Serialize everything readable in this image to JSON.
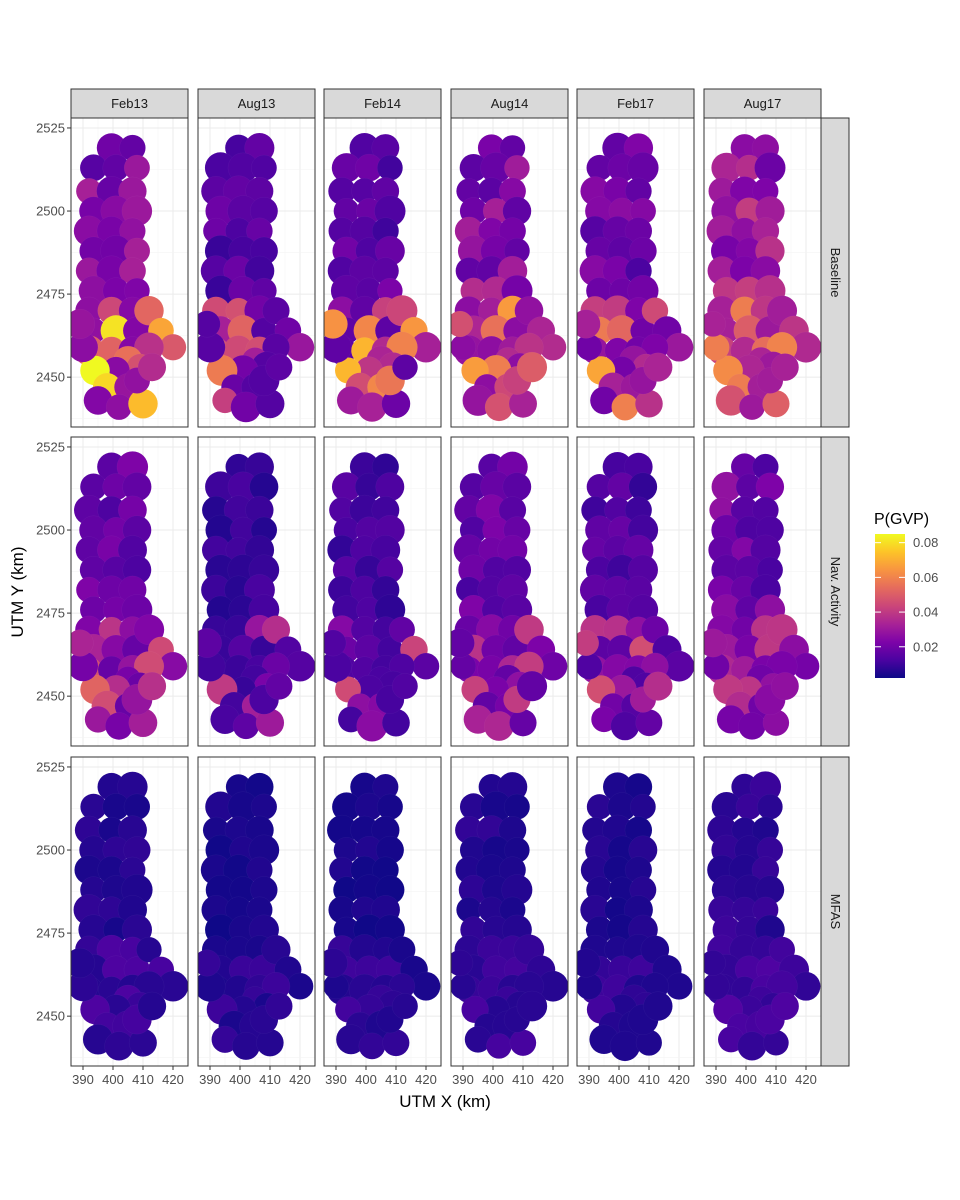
{
  "chart_data": {
    "type": "heatmap",
    "description_kind": "faceted choropleth map grid (Voronoi-like cells)",
    "columns": [
      "Feb13",
      "Aug13",
      "Feb14",
      "Aug14",
      "Feb17",
      "Aug17"
    ],
    "rows": [
      "Baseline",
      "Nav. Activity",
      "MFAS"
    ],
    "xlabel": "UTM X (km)",
    "ylabel": "UTM Y (km)",
    "x_ticks": [
      "390",
      "400",
      "410",
      "420"
    ],
    "x_tick_values": [
      390,
      400,
      410,
      420
    ],
    "y_ticks": [
      "2525",
      "2500",
      "2475",
      "2450"
    ],
    "y_tick_values": [
      2525,
      2500,
      2475,
      2450
    ],
    "xlim": [
      386,
      425
    ],
    "ylim": [
      2435,
      2528
    ],
    "grid": true,
    "legend": {
      "title": "P(GVP)",
      "position": "right",
      "range": [
        0.002,
        0.085
      ],
      "ticks": [
        "0.08",
        "0.06",
        "0.04",
        "0.02"
      ],
      "tick_values": [
        0.08,
        0.06,
        0.04,
        0.02
      ],
      "palette": [
        "#0d0887",
        "#4b03a1",
        "#7d03a8",
        "#a82296",
        "#cb4679",
        "#e56b5d",
        "#f89441",
        "#fdc328",
        "#f0f921"
      ]
    },
    "cell_values_note": "approximate values; max ~0.085 in Baseline Feb13 south-east cell",
    "panel_level": {
      "Baseline": {
        "Feb13": 0.024,
        "Aug13": 0.014,
        "Feb14": 0.016,
        "Aug14": 0.026,
        "Feb17": 0.02,
        "Aug17": 0.03
      },
      "Nav. Activity": {
        "Feb13": 0.018,
        "Aug13": 0.009,
        "Feb14": 0.011,
        "Aug14": 0.017,
        "Feb17": 0.013,
        "Aug17": 0.02
      },
      "MFAS": {
        "Feb13": 0.006,
        "Aug13": 0.004,
        "Feb14": 0.004,
        "Aug14": 0.006,
        "Feb17": 0.005,
        "Aug17": 0.008
      }
    },
    "hotspots": {
      "Baseline": {
        "Feb13": 0.085,
        "Aug13": 0.058,
        "Feb14": 0.072,
        "Aug14": 0.066,
        "Feb17": 0.068,
        "Aug17": 0.062
      },
      "Nav. Activity": {
        "Feb13": 0.052,
        "Aug13": 0.04,
        "Feb14": 0.045,
        "Aug14": 0.042,
        "Feb17": 0.046,
        "Aug17": 0.04
      },
      "MFAS": {
        "Feb13": 0.013,
        "Aug13": 0.01,
        "Feb14": 0.011,
        "Aug14": 0.012,
        "Feb17": 0.011,
        "Aug17": 0.014
      }
    }
  }
}
